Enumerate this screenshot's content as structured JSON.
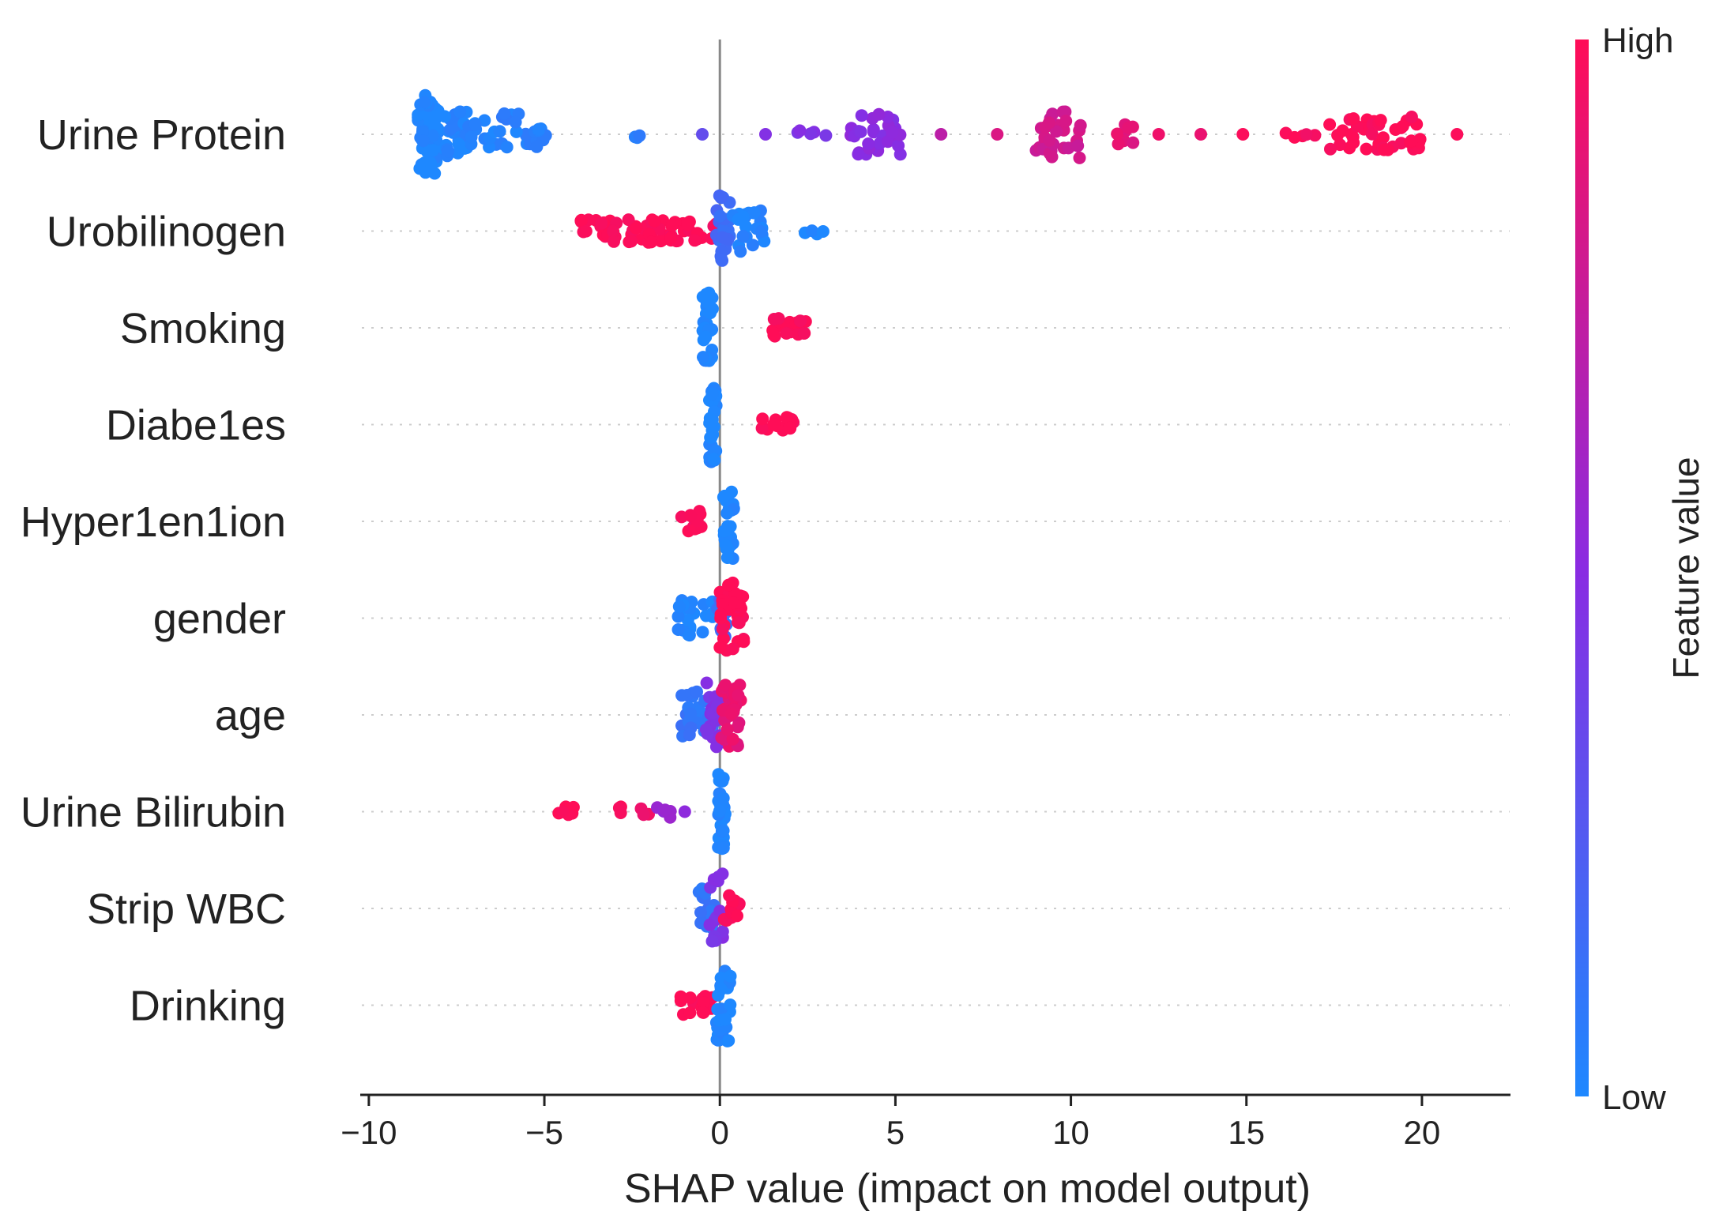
{
  "chart_data": {
    "type": "scatter",
    "subtype": "shap-beeswarm",
    "title": "",
    "xlabel": "SHAP value (impact on model output)",
    "ylabel": "",
    "xlim": [
      -10.2,
      22.5
    ],
    "xticks": [
      -10,
      -5,
      0,
      5,
      10,
      15,
      20
    ],
    "xtick_labels": [
      "−10",
      "−5",
      "0",
      "5",
      "10",
      "15",
      "20"
    ],
    "grid": false,
    "colorbar": {
      "title": "Feature value",
      "high_label": "High",
      "low_label": "Low",
      "low_color": "#1e88ff",
      "mid_color": "#8a2be2",
      "high_color": "#ff0d57"
    },
    "features": [
      {
        "name": "Urine Protein",
        "clusters": [
          {
            "x": [
              -8.6,
              -8.0
            ],
            "fv": 0.0,
            "n": 60,
            "spread": 1.0
          },
          {
            "x": [
              -8.0,
              -7.2
            ],
            "fv": 0.02,
            "n": 26,
            "spread": 0.6
          },
          {
            "x": [
              -7.2,
              -6.2
            ],
            "fv": 0.03,
            "n": 14,
            "spread": 0.4
          },
          {
            "x": [
              -6.2,
              -5.2
            ],
            "fv": 0.04,
            "n": 18,
            "spread": 0.55
          },
          {
            "x": [
              -5.2,
              -4.8
            ],
            "fv": 0.05,
            "n": 5,
            "spread": 0.2
          },
          {
            "x": [
              -2.5,
              -2.2
            ],
            "fv": 0.08,
            "n": 3,
            "spread": 0.1
          },
          {
            "x": [
              -0.5,
              -0.5
            ],
            "fv": 0.35,
            "n": 1,
            "spread": 0
          },
          {
            "x": [
              1.3,
              1.3
            ],
            "fv": 0.45,
            "n": 1,
            "spread": 0
          },
          {
            "x": [
              2.2,
              3.2
            ],
            "fv": 0.45,
            "n": 5,
            "spread": 0.1
          },
          {
            "x": [
              3.6,
              5.2
            ],
            "fv": 0.5,
            "n": 30,
            "spread": 0.55
          },
          {
            "x": [
              6.3,
              6.3
            ],
            "fv": 0.75,
            "n": 1,
            "spread": 0
          },
          {
            "x": [
              7.9,
              7.9
            ],
            "fv": 0.85,
            "n": 1,
            "spread": 0
          },
          {
            "x": [
              9.0,
              10.4
            ],
            "fv": 0.8,
            "n": 28,
            "spread": 0.6
          },
          {
            "x": [
              10.9,
              11.8
            ],
            "fv": 0.88,
            "n": 8,
            "spread": 0.25
          },
          {
            "x": [
              12.5,
              12.5
            ],
            "fv": 0.9,
            "n": 1,
            "spread": 0
          },
          {
            "x": [
              13.7,
              13.7
            ],
            "fv": 0.92,
            "n": 1,
            "spread": 0
          },
          {
            "x": [
              14.9,
              14.9
            ],
            "fv": 0.95,
            "n": 1,
            "spread": 0
          },
          {
            "x": [
              15.9,
              17.0
            ],
            "fv": 0.97,
            "n": 5,
            "spread": 0.1
          },
          {
            "x": [
              17.3,
              20.0
            ],
            "fv": 1.0,
            "n": 42,
            "spread": 0.45
          },
          {
            "x": [
              21.0,
              21.0
            ],
            "fv": 1.0,
            "n": 1,
            "spread": 0
          }
        ]
      },
      {
        "name": "Urobilinogen",
        "clusters": [
          {
            "x": [
              -4.0,
              -0.5
            ],
            "fv": 1.0,
            "n": 60,
            "spread": 0.3
          },
          {
            "x": [
              -0.3,
              0.0
            ],
            "fv": 0.95,
            "n": 4,
            "spread": 0.2
          },
          {
            "x": [
              -0.1,
              0.3
            ],
            "fv": 0.15,
            "n": 28,
            "spread": 0.9
          },
          {
            "x": [
              0.3,
              1.3
            ],
            "fv": 0.02,
            "n": 22,
            "spread": 0.55
          },
          {
            "x": [
              1.9,
              3.1
            ],
            "fv": 0.0,
            "n": 4,
            "spread": 0.1
          }
        ]
      },
      {
        "name": "Smoking",
        "clusters": [
          {
            "x": [
              -0.5,
              -0.2
            ],
            "fv": 0.0,
            "n": 30,
            "spread": 0.9
          },
          {
            "x": [
              1.5,
              2.5
            ],
            "fv": 1.0,
            "n": 20,
            "spread": 0.25
          }
        ]
      },
      {
        "name": "Diabe1es",
        "clusters": [
          {
            "x": [
              -0.3,
              -0.1
            ],
            "fv": 0.0,
            "n": 30,
            "spread": 0.95
          },
          {
            "x": [
              1.2,
              2.1
            ],
            "fv": 1.0,
            "n": 16,
            "spread": 0.2
          }
        ]
      },
      {
        "name": "Hyper1en1ion",
        "clusters": [
          {
            "x": [
              -1.1,
              -0.5
            ],
            "fv": 1.0,
            "n": 14,
            "spread": 0.3
          },
          {
            "x": [
              0.1,
              0.4
            ],
            "fv": 0.0,
            "n": 30,
            "spread": 0.95
          }
        ]
      },
      {
        "name": "gender",
        "clusters": [
          {
            "x": [
              -1.2,
              -0.1
            ],
            "fv": 0.0,
            "n": 22,
            "spread": 0.45
          },
          {
            "x": [
              -0.1,
              0.2
            ],
            "fv": 0.15,
            "n": 12,
            "spread": 0.5
          },
          {
            "x": [
              0.0,
              0.7
            ],
            "fv": 1.0,
            "n": 34,
            "spread": 0.9
          }
        ]
      },
      {
        "name": "age",
        "clusters": [
          {
            "x": [
              -1.1,
              -0.2
            ],
            "fv": 0.1,
            "n": 28,
            "spread": 0.6
          },
          {
            "x": [
              -0.4,
              0.2
            ],
            "fv": 0.45,
            "n": 26,
            "spread": 0.85
          },
          {
            "x": [
              0.0,
              0.6
            ],
            "fv": 0.9,
            "n": 32,
            "spread": 0.8
          }
        ]
      },
      {
        "name": "Urine Bilirubin",
        "clusters": [
          {
            "x": [
              -4.6,
              -3.9
            ],
            "fv": 1.0,
            "n": 6,
            "spread": 0.15
          },
          {
            "x": [
              -2.9,
              -2.6
            ],
            "fv": 1.0,
            "n": 3,
            "spread": 0.15
          },
          {
            "x": [
              -2.3,
              -1.8
            ],
            "fv": 0.95,
            "n": 3,
            "spread": 0.1
          },
          {
            "x": [
              -1.8,
              -1.3
            ],
            "fv": 0.55,
            "n": 5,
            "spread": 0.15
          },
          {
            "x": [
              -1.0,
              -0.9
            ],
            "fv": 0.55,
            "n": 1,
            "spread": 0
          },
          {
            "x": [
              -0.05,
              0.15
            ],
            "fv": 0.0,
            "n": 30,
            "spread": 0.95
          }
        ]
      },
      {
        "name": "Strip WBC",
        "clusters": [
          {
            "x": [
              -0.6,
              -0.1
            ],
            "fv": 0.1,
            "n": 16,
            "spread": 0.5
          },
          {
            "x": [
              -0.3,
              0.1
            ],
            "fv": 0.45,
            "n": 14,
            "spread": 0.9
          },
          {
            "x": [
              0.1,
              0.6
            ],
            "fv": 1.0,
            "n": 12,
            "spread": 0.35
          }
        ]
      },
      {
        "name": "Drinking",
        "clusters": [
          {
            "x": [
              -1.2,
              -0.2
            ],
            "fv": 1.0,
            "n": 18,
            "spread": 0.25
          },
          {
            "x": [
              -0.1,
              0.3
            ],
            "fv": 0.0,
            "n": 30,
            "spread": 0.95
          }
        ]
      }
    ]
  }
}
